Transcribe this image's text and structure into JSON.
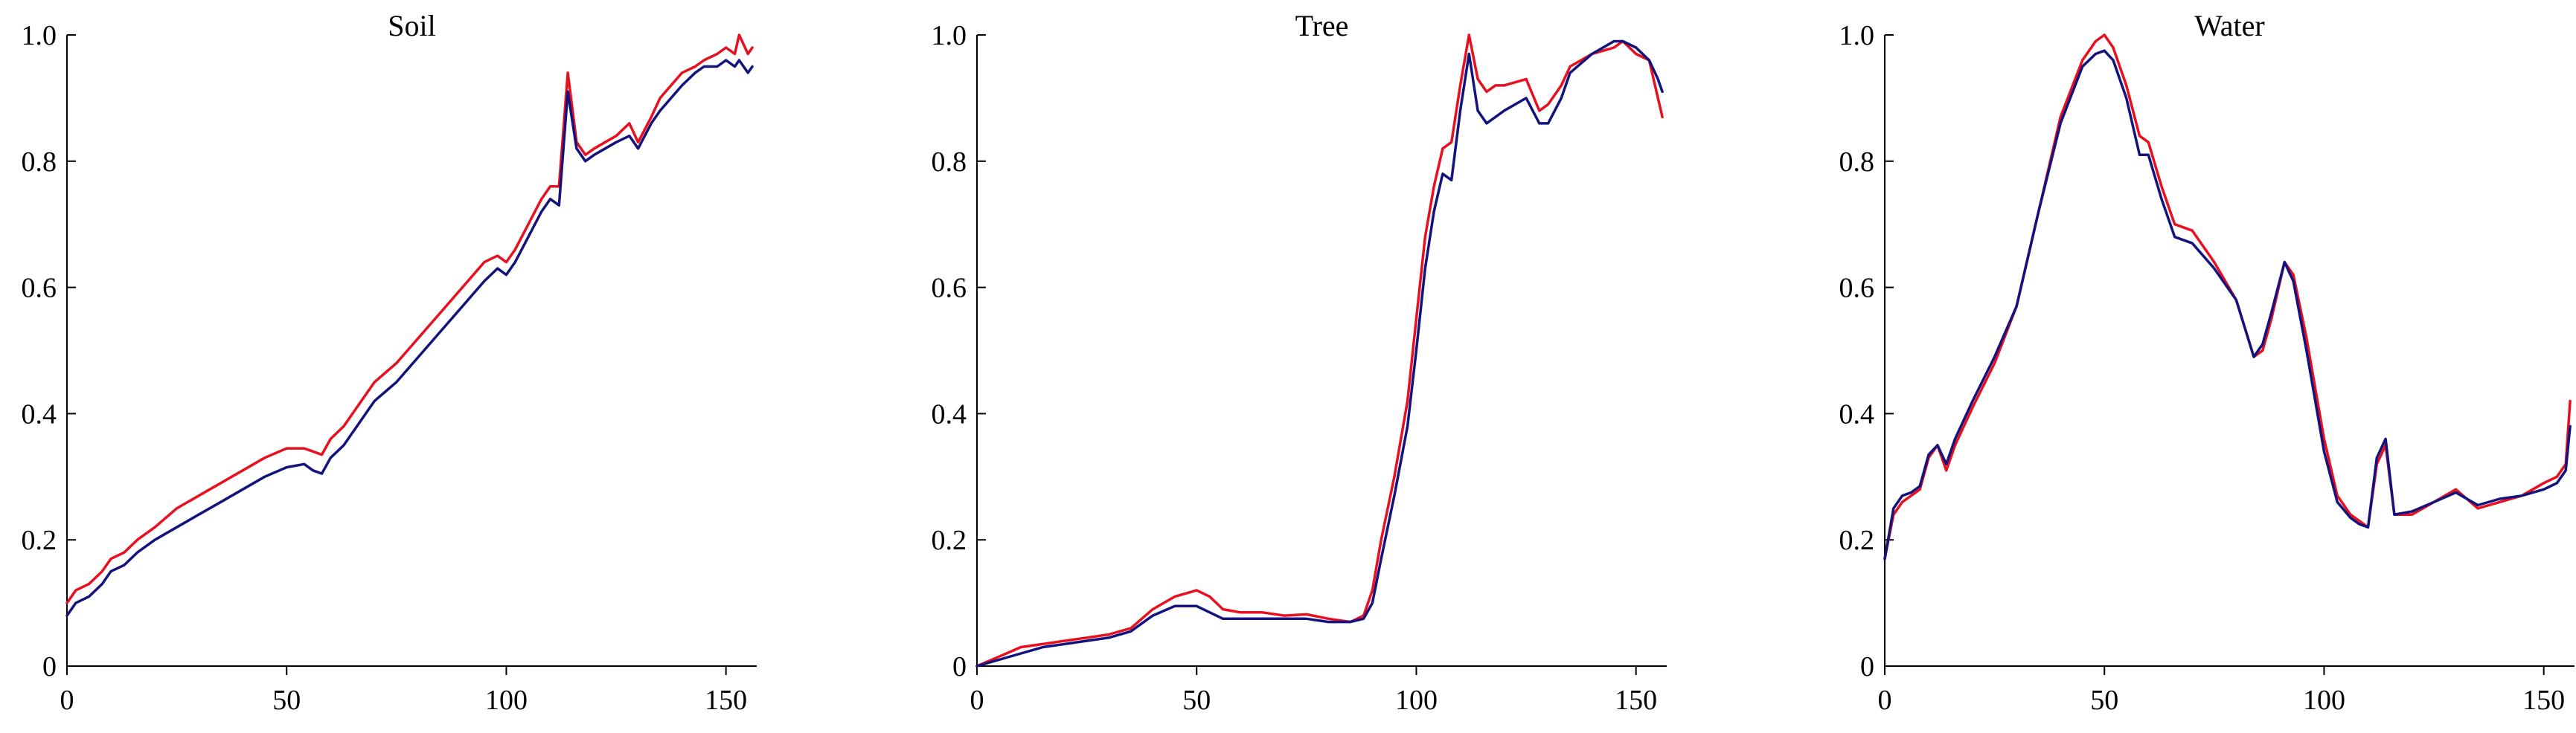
{
  "chart_data": [
    {
      "type": "line",
      "title": "Soil",
      "xlim": [
        0,
        157
      ],
      "ylim": [
        0,
        1.0
      ],
      "xticks": [
        0,
        50,
        100,
        150
      ],
      "yticks": [
        0,
        0.2,
        0.4,
        0.6,
        0.8,
        1.0
      ],
      "xtick_labels": [
        "0",
        "50",
        "100",
        "150"
      ],
      "ytick_labels": [
        "0",
        "0.2",
        "0.4",
        "0.6",
        "0.8",
        "1.0"
      ],
      "grid": false,
      "series": [
        {
          "color": "#e8101e",
          "x": [
            0,
            2,
            5,
            8,
            10,
            13,
            16,
            20,
            25,
            30,
            35,
            40,
            45,
            50,
            54,
            56,
            58,
            60,
            63,
            66,
            70,
            75,
            80,
            85,
            90,
            95,
            98,
            100,
            102,
            105,
            108,
            110,
            112,
            114,
            116,
            118,
            120,
            125,
            128,
            130,
            133,
            135,
            140,
            143,
            145,
            148,
            150,
            152,
            153,
            155,
            156
          ],
          "y": [
            0.1,
            0.12,
            0.13,
            0.15,
            0.17,
            0.18,
            0.2,
            0.22,
            0.25,
            0.27,
            0.29,
            0.31,
            0.33,
            0.345,
            0.345,
            0.34,
            0.335,
            0.36,
            0.38,
            0.41,
            0.45,
            0.48,
            0.52,
            0.56,
            0.6,
            0.64,
            0.65,
            0.64,
            0.66,
            0.7,
            0.74,
            0.76,
            0.76,
            0.94,
            0.83,
            0.81,
            0.82,
            0.84,
            0.86,
            0.83,
            0.87,
            0.9,
            0.94,
            0.95,
            0.96,
            0.97,
            0.98,
            0.97,
            1.0,
            0.97,
            0.98
          ]
        },
        {
          "color": "#13137e",
          "x": [
            0,
            2,
            5,
            8,
            10,
            13,
            16,
            20,
            25,
            30,
            35,
            40,
            45,
            50,
            54,
            56,
            58,
            60,
            63,
            66,
            70,
            75,
            80,
            85,
            90,
            95,
            98,
            100,
            102,
            105,
            108,
            110,
            112,
            114,
            116,
            118,
            120,
            125,
            128,
            130,
            133,
            135,
            140,
            143,
            145,
            148,
            150,
            152,
            153,
            155,
            156
          ],
          "y": [
            0.08,
            0.1,
            0.11,
            0.13,
            0.15,
            0.16,
            0.18,
            0.2,
            0.22,
            0.24,
            0.26,
            0.28,
            0.3,
            0.315,
            0.32,
            0.31,
            0.305,
            0.33,
            0.35,
            0.38,
            0.42,
            0.45,
            0.49,
            0.53,
            0.57,
            0.61,
            0.63,
            0.62,
            0.64,
            0.68,
            0.72,
            0.74,
            0.73,
            0.91,
            0.82,
            0.8,
            0.81,
            0.83,
            0.84,
            0.82,
            0.86,
            0.88,
            0.92,
            0.94,
            0.95,
            0.95,
            0.96,
            0.95,
            0.96,
            0.94,
            0.95
          ]
        }
      ]
    },
    {
      "type": "line",
      "title": "Tree",
      "xlim": [
        0,
        157
      ],
      "ylim": [
        0,
        1.0
      ],
      "xticks": [
        0,
        50,
        100,
        150
      ],
      "yticks": [
        0,
        0.2,
        0.4,
        0.6,
        0.8,
        1.0
      ],
      "xtick_labels": [
        "0",
        "50",
        "100",
        "150"
      ],
      "ytick_labels": [
        "0",
        "0.2",
        "0.4",
        "0.6",
        "0.8",
        "1.0"
      ],
      "grid": false,
      "series": [
        {
          "color": "#e8101e",
          "x": [
            0,
            5,
            10,
            15,
            20,
            25,
            30,
            35,
            40,
            45,
            50,
            53,
            56,
            60,
            65,
            70,
            75,
            80,
            85,
            88,
            90,
            92,
            95,
            98,
            100,
            102,
            104,
            106,
            108,
            110,
            112,
            114,
            116,
            118,
            120,
            125,
            128,
            130,
            133,
            135,
            140,
            145,
            147,
            150,
            153,
            155,
            156
          ],
          "y": [
            0.0,
            0.015,
            0.03,
            0.035,
            0.04,
            0.045,
            0.05,
            0.06,
            0.09,
            0.11,
            0.12,
            0.11,
            0.09,
            0.085,
            0.085,
            0.08,
            0.082,
            0.075,
            0.07,
            0.08,
            0.12,
            0.2,
            0.3,
            0.42,
            0.55,
            0.68,
            0.76,
            0.82,
            0.83,
            0.92,
            1.0,
            0.93,
            0.91,
            0.92,
            0.92,
            0.93,
            0.88,
            0.89,
            0.92,
            0.95,
            0.97,
            0.98,
            0.99,
            0.97,
            0.96,
            0.9,
            0.87
          ]
        },
        {
          "color": "#13137e",
          "x": [
            0,
            5,
            10,
            15,
            20,
            25,
            30,
            35,
            40,
            45,
            50,
            53,
            56,
            60,
            65,
            70,
            75,
            80,
            85,
            88,
            90,
            92,
            95,
            98,
            100,
            102,
            104,
            106,
            108,
            110,
            112,
            114,
            116,
            118,
            120,
            125,
            128,
            130,
            133,
            135,
            140,
            145,
            147,
            150,
            153,
            155,
            156
          ],
          "y": [
            0.0,
            0.01,
            0.02,
            0.03,
            0.035,
            0.04,
            0.045,
            0.055,
            0.08,
            0.095,
            0.095,
            0.085,
            0.075,
            0.075,
            0.075,
            0.075,
            0.075,
            0.07,
            0.07,
            0.075,
            0.1,
            0.17,
            0.27,
            0.38,
            0.5,
            0.63,
            0.72,
            0.78,
            0.77,
            0.88,
            0.97,
            0.88,
            0.86,
            0.87,
            0.88,
            0.9,
            0.86,
            0.86,
            0.9,
            0.94,
            0.97,
            0.99,
            0.99,
            0.98,
            0.96,
            0.93,
            0.91
          ]
        }
      ]
    },
    {
      "type": "line",
      "title": "Water",
      "xlim": [
        0,
        157
      ],
      "ylim": [
        0,
        1.0
      ],
      "xticks": [
        0,
        50,
        100,
        150
      ],
      "yticks": [
        0,
        0.2,
        0.4,
        0.6,
        0.8,
        1.0
      ],
      "xtick_labels": [
        "0",
        "50",
        "100",
        "150"
      ],
      "ytick_labels": [
        "0",
        "0.2",
        "0.4",
        "0.6",
        "0.8",
        "1.0"
      ],
      "grid": false,
      "series": [
        {
          "color": "#e8101e",
          "x": [
            0,
            2,
            4,
            6,
            8,
            10,
            12,
            14,
            16,
            20,
            25,
            30,
            35,
            40,
            45,
            48,
            50,
            52,
            55,
            58,
            60,
            63,
            66,
            70,
            75,
            80,
            84,
            86,
            88,
            91,
            93,
            96,
            100,
            103,
            106,
            108,
            110,
            112,
            114,
            116,
            120,
            125,
            130,
            135,
            140,
            145,
            150,
            153,
            155,
            156
          ],
          "y": [
            0.17,
            0.24,
            0.26,
            0.27,
            0.28,
            0.33,
            0.35,
            0.31,
            0.35,
            0.41,
            0.48,
            0.57,
            0.72,
            0.87,
            0.96,
            0.99,
            1.0,
            0.98,
            0.92,
            0.84,
            0.83,
            0.76,
            0.7,
            0.69,
            0.64,
            0.58,
            0.49,
            0.5,
            0.55,
            0.64,
            0.62,
            0.52,
            0.36,
            0.27,
            0.24,
            0.23,
            0.22,
            0.32,
            0.35,
            0.24,
            0.24,
            0.26,
            0.28,
            0.25,
            0.26,
            0.27,
            0.29,
            0.3,
            0.32,
            0.42
          ]
        },
        {
          "color": "#13137e",
          "x": [
            0,
            2,
            4,
            6,
            8,
            10,
            12,
            14,
            16,
            20,
            25,
            30,
            35,
            40,
            45,
            48,
            50,
            52,
            55,
            58,
            60,
            63,
            66,
            70,
            75,
            80,
            84,
            86,
            88,
            91,
            93,
            96,
            100,
            103,
            106,
            108,
            110,
            112,
            114,
            116,
            120,
            125,
            130,
            135,
            140,
            145,
            150,
            153,
            155,
            156
          ],
          "y": [
            0.17,
            0.25,
            0.27,
            0.275,
            0.285,
            0.335,
            0.35,
            0.32,
            0.36,
            0.42,
            0.49,
            0.57,
            0.72,
            0.86,
            0.95,
            0.97,
            0.975,
            0.96,
            0.9,
            0.81,
            0.81,
            0.74,
            0.68,
            0.67,
            0.63,
            0.58,
            0.49,
            0.51,
            0.56,
            0.64,
            0.61,
            0.5,
            0.34,
            0.26,
            0.235,
            0.225,
            0.22,
            0.33,
            0.36,
            0.24,
            0.245,
            0.26,
            0.275,
            0.255,
            0.265,
            0.27,
            0.28,
            0.29,
            0.31,
            0.38
          ]
        }
      ]
    }
  ]
}
